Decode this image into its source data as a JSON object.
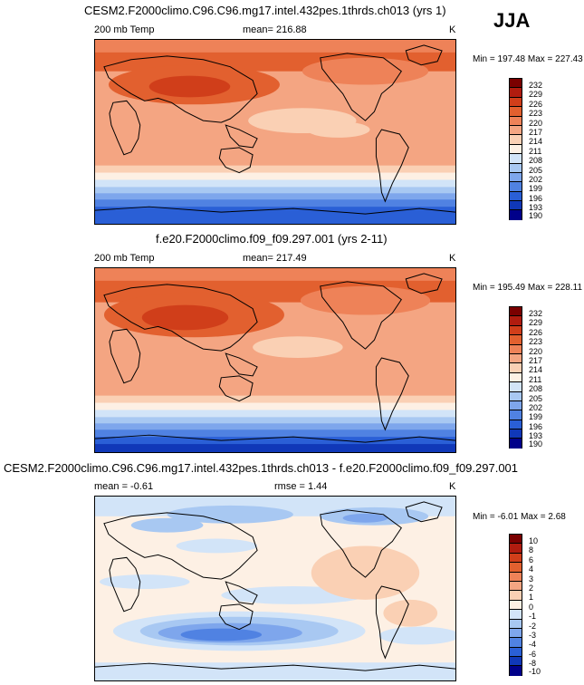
{
  "season": "JJA",
  "chart_data": [
    {
      "type": "heatmap",
      "title": "CESM2.F2000climo.C96.C96.mg17.intel.432pes.1thrds.ch013 (yrs 1)",
      "variable": "200 mb Temp",
      "mean_label": "mean= 216.88",
      "units": "K",
      "minmax_label": "Min = 197.48 Max = 227.43",
      "min": 197.48,
      "max": 227.43,
      "levels": [
        "232",
        "229",
        "226",
        "223",
        "220",
        "217",
        "214",
        "211",
        "208",
        "205",
        "202",
        "199",
        "196",
        "193",
        "190"
      ],
      "colors": [
        "#7a0000",
        "#b01c0f",
        "#d03e1a",
        "#e2602f",
        "#ee8258",
        "#f4a582",
        "#fad0b4",
        "#fdf0e4",
        "#d2e4f8",
        "#a8c8f2",
        "#7ea6ec",
        "#5082e2",
        "#2a5fd6",
        "#1038b8",
        "#00008a"
      ]
    },
    {
      "type": "heatmap",
      "title": "f.e20.F2000climo.f09_f09.297.001 (yrs 2-11)",
      "variable": "200 mb Temp",
      "mean_label": "mean= 217.49",
      "units": "K",
      "minmax_label": "Min = 195.49 Max = 228.11",
      "min": 195.49,
      "max": 228.11,
      "levels": [
        "232",
        "229",
        "226",
        "223",
        "220",
        "217",
        "214",
        "211",
        "208",
        "205",
        "202",
        "199",
        "196",
        "193",
        "190"
      ],
      "colors": [
        "#7a0000",
        "#b01c0f",
        "#d03e1a",
        "#e2602f",
        "#ee8258",
        "#f4a582",
        "#fad0b4",
        "#fdf0e4",
        "#d2e4f8",
        "#a8c8f2",
        "#7ea6ec",
        "#5082e2",
        "#2a5fd6",
        "#1038b8",
        "#00008a"
      ]
    },
    {
      "type": "heatmap",
      "title": "CESM2.F2000climo.C96.C96.mg17.intel.432pes.1thrds.ch013 - f.e20.F2000climo.f09_f09.297.001",
      "mean_label": "mean =  -0.61",
      "rmse_label": "rmse =   1.44",
      "units": "K",
      "minmax_label": "Min =  -6.01 Max =   2.68",
      "min": -6.01,
      "max": 2.68,
      "levels": [
        "10",
        "8",
        "6",
        "4",
        "3",
        "2",
        "1",
        "0",
        "-1",
        "-2",
        "-3",
        "-4",
        "-6",
        "-8",
        "-10"
      ],
      "colors": [
        "#7a0000",
        "#b01c0f",
        "#d03e1a",
        "#e2602f",
        "#ee8258",
        "#f4a582",
        "#fad0b4",
        "#fdf0e4",
        "#d2e4f8",
        "#a8c8f2",
        "#7ea6ec",
        "#5082e2",
        "#2a5fd6",
        "#1038b8",
        "#00008a"
      ]
    }
  ]
}
